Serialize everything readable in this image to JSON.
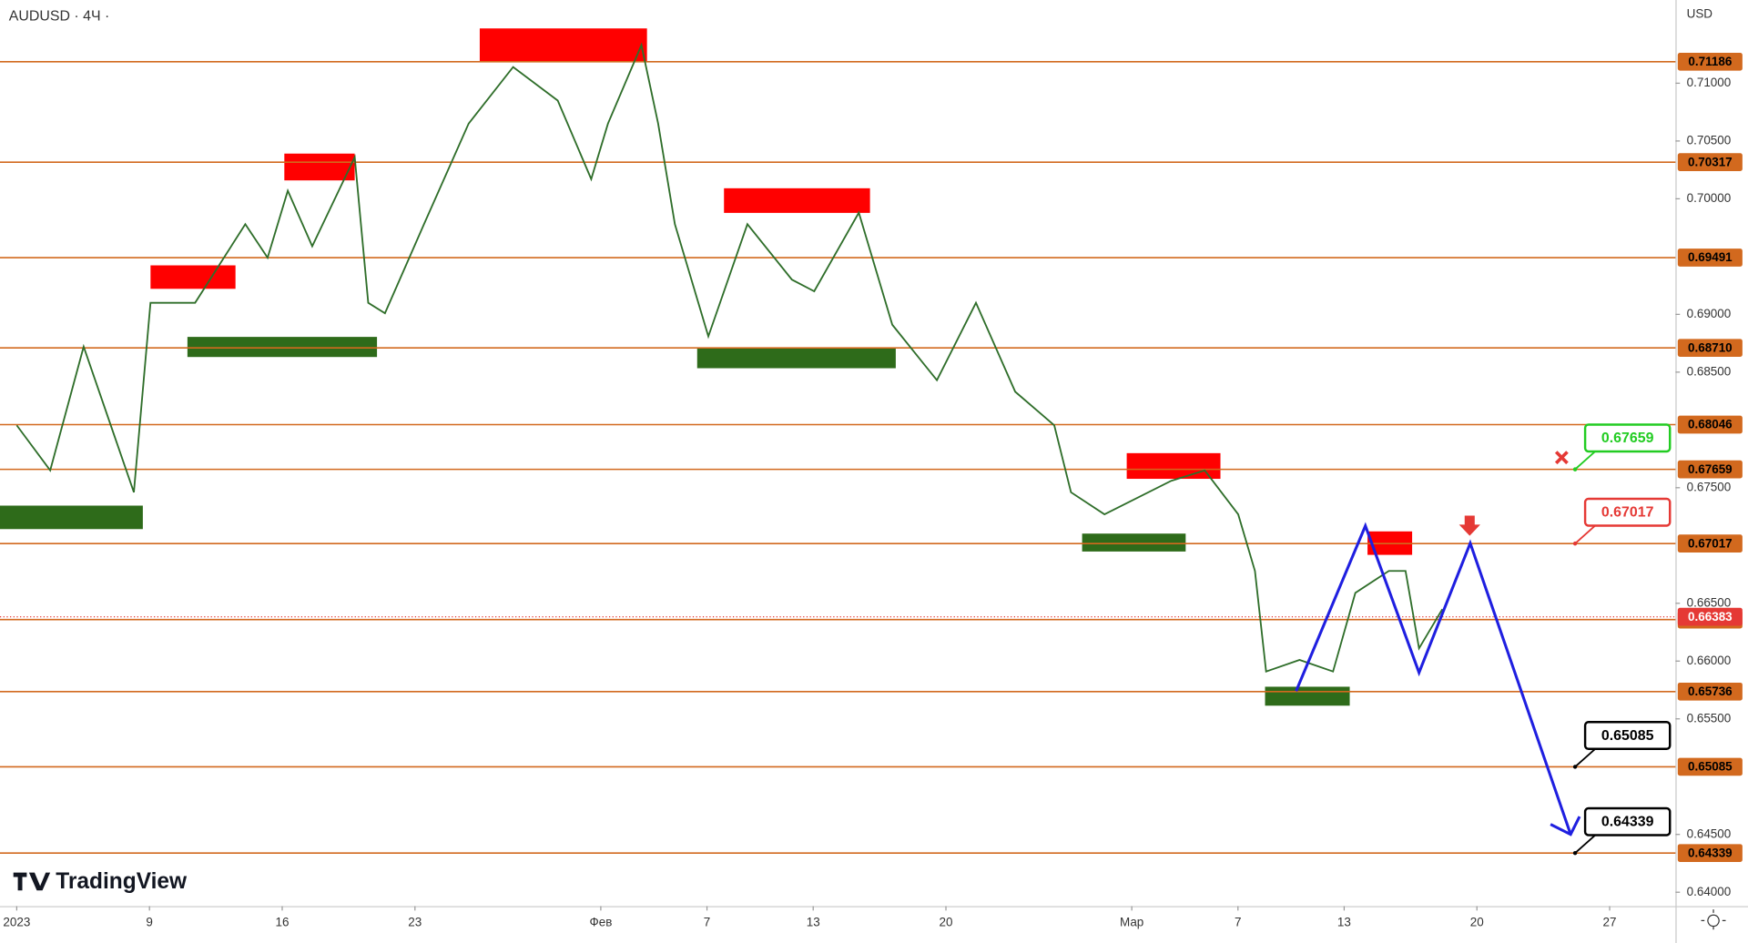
{
  "header": {
    "symbol": "AUDUSD · 4Ч ·",
    "currency": "USD",
    "brand": "TradingView"
  },
  "chart_data": {
    "type": "line",
    "x": [
      0,
      1.26,
      2.52,
      4.41,
      5.04,
      6.72,
      8.61,
      9.45,
      10.21,
      11.13,
      12.73,
      13.24,
      13.87,
      15.34,
      17.02,
      18.7,
      20.38,
      21.64,
      22.27,
      23.53,
      24.16,
      24.79,
      26.05,
      27.52,
      29.2,
      30.04,
      31.72,
      32.98,
      34.66,
      36.13,
      37.61,
      39.08,
      39.71,
      40.97,
      43.49,
      44.75,
      46.01,
      46.64,
      47.06,
      48.32,
      49.58,
      50.42,
      51.68,
      52.31,
      52.82,
      53.7
    ],
    "values": [
      0.6804,
      0.6765,
      0.6872,
      0.6746,
      0.691,
      0.691,
      0.6978,
      0.6949,
      0.7007,
      0.6959,
      0.7036,
      0.691,
      0.6901,
      0.6978,
      0.7065,
      0.7114,
      0.7085,
      0.7017,
      0.7065,
      0.7133,
      0.7065,
      0.6978,
      0.6881,
      0.6978,
      0.693,
      0.692,
      0.6988,
      0.6891,
      0.6843,
      0.691,
      0.6833,
      0.6804,
      0.6746,
      0.6727,
      0.6756,
      0.6765,
      0.6727,
      0.6678,
      0.6591,
      0.6601,
      0.6591,
      0.6659,
      0.6678,
      0.6678,
      0.6611,
      0.6645
    ],
    "color": "#2f6e2a",
    "xlim": [
      -0.63,
      62.48
    ],
    "ylim": [
      0.6388,
      0.7172
    ],
    "xticks": [
      {
        "value": 0,
        "label": "2023"
      },
      {
        "value": 5,
        "label": "9"
      },
      {
        "value": 10,
        "label": "16"
      },
      {
        "value": 15,
        "label": "23"
      },
      {
        "value": 22,
        "label": "Фев"
      },
      {
        "value": 26,
        "label": "7"
      },
      {
        "value": 30,
        "label": "13"
      },
      {
        "value": 35,
        "label": "20"
      },
      {
        "value": 42,
        "label": "Мар"
      },
      {
        "value": 46,
        "label": "7"
      },
      {
        "value": 50,
        "label": "13"
      },
      {
        "value": 55,
        "label": "20"
      },
      {
        "value": 60,
        "label": "27"
      }
    ],
    "yticks": [
      {
        "value": 0.71,
        "label": "0.71000"
      },
      {
        "value": 0.705,
        "label": "0.70500"
      },
      {
        "value": 0.7,
        "label": "0.70000"
      },
      {
        "value": 0.69,
        "label": "0.69000"
      },
      {
        "value": 0.685,
        "label": "0.68500"
      },
      {
        "value": 0.675,
        "label": "0.67500"
      },
      {
        "value": 0.665,
        "label": "0.66500"
      },
      {
        "value": 0.66,
        "label": "0.66000"
      },
      {
        "value": 0.655,
        "label": "0.65500"
      },
      {
        "value": 0.645,
        "label": "0.64500"
      },
      {
        "value": 0.64,
        "label": "0.64000"
      }
    ],
    "levels": [
      0.71186,
      0.70317,
      0.69491,
      {
        "value": 0.6871,
        "label": "0.68710"
      },
      0.68046,
      0.67659,
      0.67017,
      0.66359,
      0.65736,
      0.65085,
      0.64339
    ],
    "level_color": "#d2691e",
    "current_price": 0.66383,
    "current_color": "#e53935",
    "callouts": [
      {
        "value": 0.67659,
        "color": "#22cc22"
      },
      {
        "value": 0.67017,
        "color": "#e53935"
      },
      {
        "value": 0.65085,
        "color": "#000000"
      },
      {
        "value": 0.64339,
        "color": "#000000"
      }
    ],
    "zones": [
      {
        "x0": 5.04,
        "x1": 8.24,
        "y0": 0.69424,
        "y1": 0.69221,
        "color": "#ff0000"
      },
      {
        "x0": 10.08,
        "x1": 12.73,
        "y0": 0.70391,
        "y1": 0.70159,
        "color": "#ff0000"
      },
      {
        "x0": 17.44,
        "x1": 23.74,
        "y0": 0.71474,
        "y1": 0.71184,
        "color": "#ff0000"
      },
      {
        "x0": 26.64,
        "x1": 32.14,
        "y0": 0.70091,
        "y1": 0.69878,
        "color": "#ff0000"
      },
      {
        "x0": 41.81,
        "x1": 45.34,
        "y0": 0.67799,
        "y1": 0.67577,
        "color": "#ff0000"
      },
      {
        "x0": 50.88,
        "x1": 52.56,
        "y0": 0.67122,
        "y1": 0.66919,
        "color": "#ff0000"
      },
      {
        "x0": -0.63,
        "x1": 4.75,
        "y0": 0.67345,
        "y1": 0.67142,
        "color": "#2e6b1a"
      },
      {
        "x0": 6.43,
        "x1": 13.57,
        "y0": 0.68805,
        "y1": 0.68631,
        "color": "#2e6b1a"
      },
      {
        "x0": 25.63,
        "x1": 33.11,
        "y0": 0.68708,
        "y1": 0.68534,
        "color": "#2e6b1a"
      },
      {
        "x0": 40.13,
        "x1": 44.03,
        "y0": 0.67103,
        "y1": 0.66948,
        "color": "#2e6b1a"
      },
      {
        "x0": 47.02,
        "x1": 50.21,
        "y0": 0.65778,
        "y1": 0.65614,
        "color": "#2e6b1a"
      }
    ],
    "projection": {
      "x": [
        48.19,
        50.8,
        52.82,
        54.75,
        58.53
      ],
      "values": [
        0.6574,
        0.6717,
        0.659,
        0.6702,
        0.645
      ],
      "color": "#1f1fe0"
    }
  }
}
